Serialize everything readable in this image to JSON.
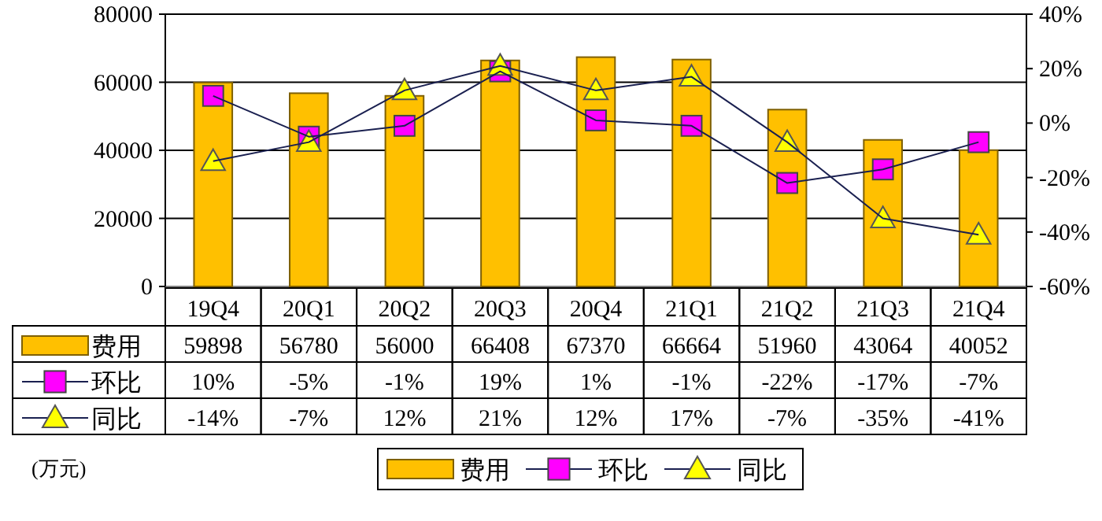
{
  "chart_data": {
    "type": "bar",
    "categories": [
      "19Q4",
      "20Q1",
      "20Q2",
      "20Q3",
      "20Q4",
      "21Q1",
      "21Q2",
      "21Q3",
      "21Q4"
    ],
    "series": [
      {
        "name": "费用",
        "color": "#ffc000",
        "values": [
          59898,
          56780,
          56000,
          66408,
          67370,
          66664,
          51960,
          43064,
          40052
        ],
        "value_labels": [
          "59898",
          "56780",
          "56000",
          "66408",
          "67370",
          "66664",
          "51960",
          "43064",
          "40052"
        ]
      },
      {
        "name": "环比",
        "type": "line",
        "axis": "y2",
        "marker": "square",
        "color": "#ff00ff",
        "values": [
          10,
          -5,
          -1,
          19,
          1,
          -1,
          -22,
          -17,
          -7
        ],
        "value_labels": [
          "10%",
          "-5%",
          "-1%",
          "19%",
          "1%",
          "-1%",
          "-22%",
          "-17%",
          "-7%"
        ]
      },
      {
        "name": "同比",
        "type": "line",
        "axis": "y2",
        "marker": "triangle",
        "color": "#ffff00",
        "values": [
          -14,
          -7,
          12,
          21,
          12,
          17,
          -7,
          -35,
          -41
        ],
        "value_labels": [
          "-14%",
          "-7%",
          "12%",
          "21%",
          "12%",
          "17%",
          "-7%",
          "-35%",
          "-41%"
        ]
      }
    ],
    "ylim": [
      0,
      80000
    ],
    "yticks": [
      0,
      20000,
      40000,
      60000,
      80000
    ],
    "y2lim": [
      -60,
      40
    ],
    "y2ticks": [
      {
        "value": -60,
        "label": "-60%"
      },
      {
        "value": -40,
        "label": "-40%"
      },
      {
        "value": -20,
        "label": "-20%"
      },
      {
        "value": 0,
        "label": "0%"
      },
      {
        "value": 20,
        "label": "20%"
      },
      {
        "value": 40,
        "label": "40%"
      }
    ],
    "grid": "y",
    "legend": "bottom",
    "annotations": [
      "(万元)"
    ]
  }
}
